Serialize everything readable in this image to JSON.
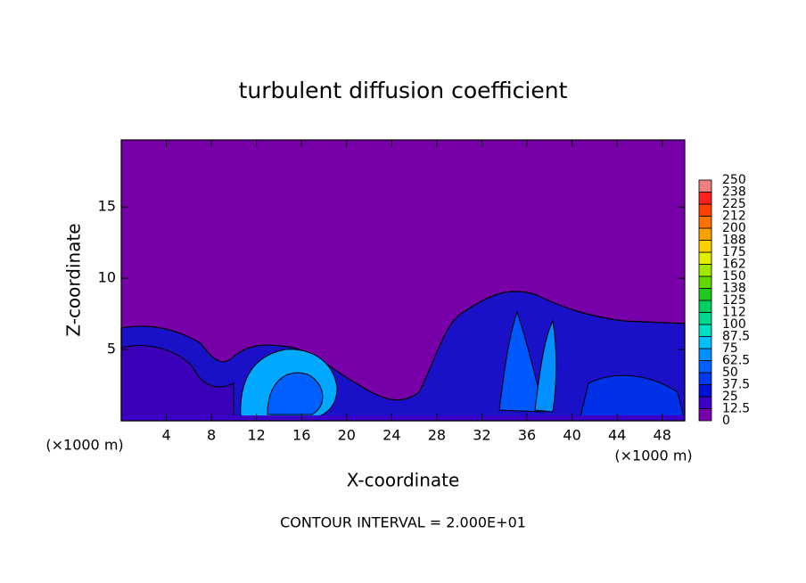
{
  "chart_data": {
    "type": "contour",
    "title": "turbulent diffusion coefficient",
    "xlabel": "X-coordinate",
    "ylabel": "Z-coordinate",
    "x_unit_label": "(×1000 m)",
    "footnote": "CONTOUR INTERVAL = 2.000E+01",
    "xlim": [
      0,
      50
    ],
    "ylim": [
      0,
      19.7
    ],
    "xticks": [
      4,
      8,
      12,
      16,
      20,
      24,
      28,
      32,
      36,
      40,
      44,
      48
    ],
    "yticks": [
      5,
      10,
      15
    ],
    "colorbar": {
      "levels": [
        0,
        12.5,
        25,
        37.5,
        50,
        62.5,
        75,
        87.5,
        100,
        {
          "value": 112.5,
          "label": "112"
        },
        125,
        {
          "value": 137.5,
          "label": "138"
        },
        150,
        {
          "value": 162.5,
          "label": "162"
        },
        175,
        {
          "value": 187.5,
          "label": "188"
        },
        200,
        {
          "value": 212.5,
          "label": "212"
        },
        225,
        {
          "value": 237.5,
          "label": "238"
        },
        250
      ],
      "colors": [
        "#7800a8",
        "#3c00c8",
        "#0010d8",
        "#0038f0",
        "#0060ff",
        "#0090ff",
        "#00c0ff",
        "#00e0c0",
        "#00d890",
        "#00d060",
        "#20c820",
        "#60d800",
        "#a0e800",
        "#e0f000",
        "#ffd000",
        "#ffa000",
        "#ff7000",
        "#ff4000",
        "#ff2020",
        "#f08080"
      ]
    }
  }
}
